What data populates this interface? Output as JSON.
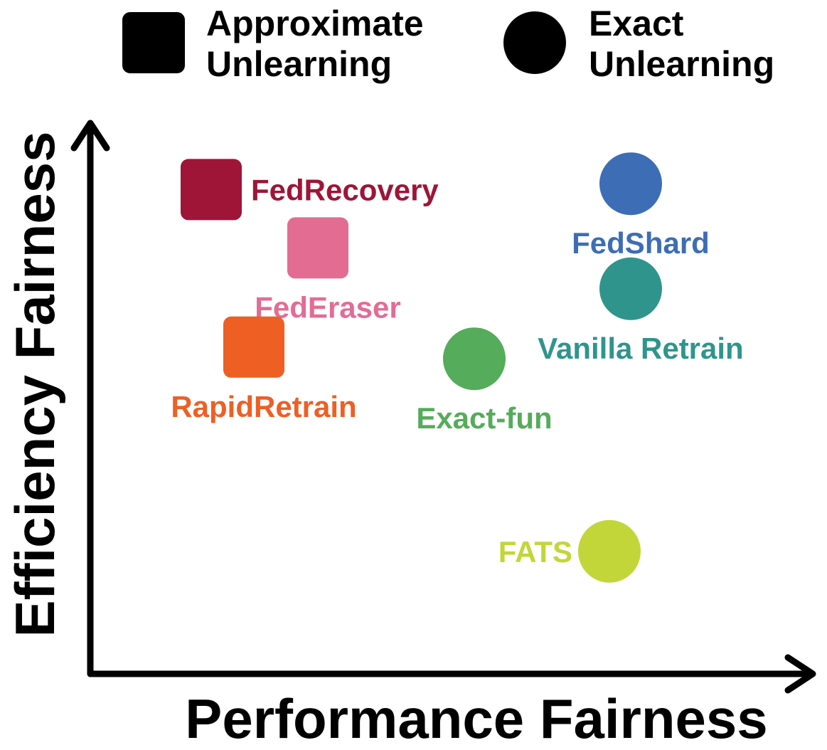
{
  "chart_data": {
    "type": "scatter",
    "xlabel": "Performance Fairness",
    "ylabel": "Efficiency Fairness",
    "legend": {
      "placement": "top",
      "entries": [
        {
          "label": "Approximate Unlearning",
          "lines": [
            "Approximate",
            "Unlearning"
          ],
          "marker": "square",
          "color": "#000000"
        },
        {
          "label": "Exact Unlearning",
          "lines": [
            "Exact",
            "Unlearning"
          ],
          "marker": "circle",
          "color": "#000000"
        }
      ]
    },
    "xlim": [
      0,
      10
    ],
    "ylim": [
      0,
      10
    ],
    "grid": false,
    "series": [
      {
        "name": "FedRecovery",
        "x": 1.7,
        "y": 8.3,
        "marker": "square",
        "color": "#9E1538",
        "label_side": "right"
      },
      {
        "name": "FedEraser",
        "x": 3.2,
        "y": 7.3,
        "marker": "square",
        "color": "#E36C93",
        "label_side": "below"
      },
      {
        "name": "RapidRetrain",
        "x": 2.3,
        "y": 5.6,
        "marker": "square",
        "color": "#EE5F24",
        "label_side": "below"
      },
      {
        "name": "FedShard",
        "x": 7.6,
        "y": 8.4,
        "marker": "circle",
        "color": "#3D6DB5",
        "label_side": "below"
      },
      {
        "name": "Vanilla Retrain",
        "x": 7.6,
        "y": 6.6,
        "marker": "circle",
        "color": "#2F958C",
        "label_side": "below"
      },
      {
        "name": "Exact-fun",
        "x": 5.4,
        "y": 5.4,
        "marker": "circle",
        "color": "#55AC5A",
        "label_side": "below"
      },
      {
        "name": "FATS",
        "x": 7.3,
        "y": 2.1,
        "marker": "circle",
        "color": "#C2D63A",
        "label_side": "left"
      }
    ]
  }
}
